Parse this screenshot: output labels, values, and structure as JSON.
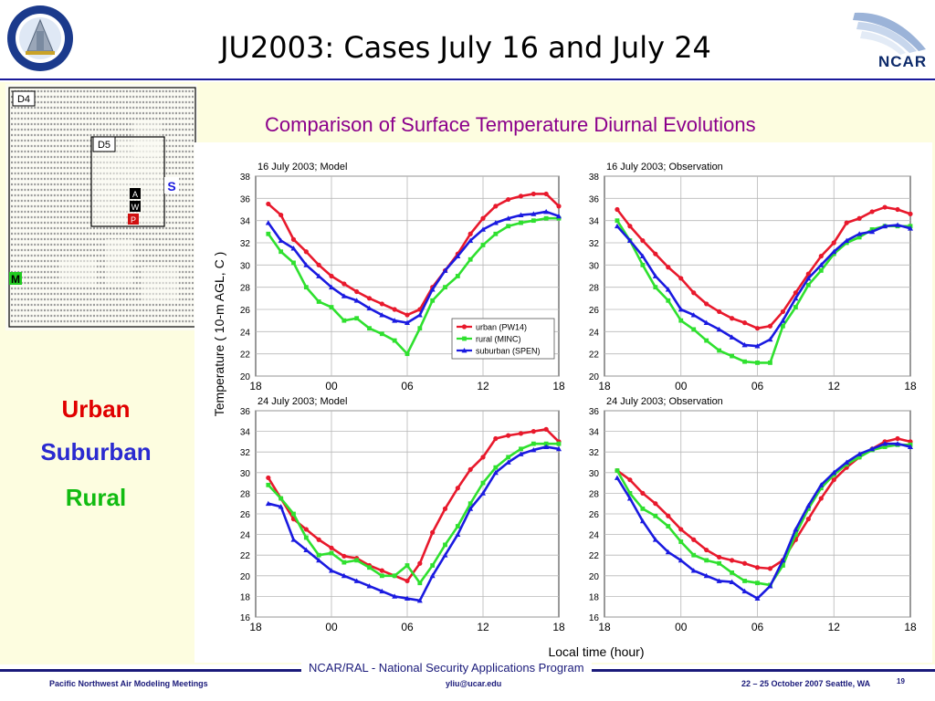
{
  "title": "JU2003: Cases July 16 and July 24",
  "subtitle": "Comparison of Surface Temperature Diurnal Evolutions",
  "map": {
    "domain_labels": [
      "D4",
      "D5"
    ],
    "site_labels": [
      "S",
      "M",
      "A",
      "W",
      "P"
    ]
  },
  "legend_words": {
    "urban": "Urban",
    "suburban": "Suburban",
    "rural": "Rural"
  },
  "colors": {
    "urban": "#e8192c",
    "rural": "#2fe02f",
    "suburban": "#1a1ae0",
    "urban_word": "#e00000",
    "suburban_word": "#2a2ad0",
    "rural_word": "#11bb11"
  },
  "figure": {
    "ylabel": "Temperature ( 10-m AGL, C )",
    "xlabel": "Local time (hour)"
  },
  "chart_data": [
    {
      "type": "line",
      "title": "16 July 2003;  Model",
      "xticks": [
        "18",
        "00",
        "06",
        "12",
        "18"
      ],
      "xlim": [
        0,
        24
      ],
      "ylim": [
        20,
        38
      ],
      "yticks": [
        20,
        22,
        24,
        26,
        28,
        30,
        32,
        34,
        36,
        38
      ],
      "grid": true,
      "legend": {
        "position": "bottom-right",
        "entries": [
          "urban (PW14)",
          "rural (MINC)",
          "suburban (SPEN)"
        ]
      },
      "x": [
        1,
        2,
        3,
        4,
        5,
        6,
        7,
        8,
        9,
        10,
        11,
        12,
        13,
        14,
        15,
        16,
        17,
        18,
        19,
        20,
        21,
        22,
        23,
        24
      ],
      "series": [
        {
          "name": "urban (PW14)",
          "key": "urban",
          "values": [
            35.5,
            34.5,
            32.3,
            31.2,
            30.0,
            29.0,
            28.3,
            27.6,
            27.0,
            26.5,
            26.0,
            25.5,
            26.0,
            28.0,
            29.5,
            31.0,
            32.8,
            34.2,
            35.3,
            35.9,
            36.2,
            36.4,
            36.4,
            35.3
          ]
        },
        {
          "name": "rural (MINC)",
          "key": "rural",
          "values": [
            32.8,
            31.2,
            30.2,
            28.0,
            26.7,
            26.2,
            25.0,
            25.2,
            24.3,
            23.8,
            23.2,
            22.0,
            24.3,
            26.8,
            28.0,
            29.0,
            30.5,
            31.8,
            32.8,
            33.5,
            33.8,
            34.0,
            34.2,
            34.2
          ]
        },
        {
          "name": "suburban (SPEN)",
          "key": "suburban",
          "values": [
            33.8,
            32.2,
            31.5,
            30.0,
            29.0,
            28.0,
            27.2,
            26.8,
            26.1,
            25.5,
            25.0,
            24.8,
            25.5,
            27.8,
            29.5,
            30.8,
            32.2,
            33.2,
            33.8,
            34.2,
            34.5,
            34.6,
            34.8,
            34.4
          ]
        }
      ]
    },
    {
      "type": "line",
      "title": "16 July 2003;  Observation",
      "xticks": [
        "18",
        "00",
        "06",
        "12",
        "18"
      ],
      "xlim": [
        0,
        24
      ],
      "ylim": [
        20,
        38
      ],
      "yticks": [
        20,
        22,
        24,
        26,
        28,
        30,
        32,
        34,
        36,
        38
      ],
      "grid": true,
      "x": [
        1,
        2,
        3,
        4,
        5,
        6,
        7,
        8,
        9,
        10,
        11,
        12,
        13,
        14,
        15,
        16,
        17,
        18,
        19,
        20,
        21,
        22,
        23,
        24
      ],
      "series": [
        {
          "name": "urban (PW14)",
          "key": "urban",
          "values": [
            35.0,
            33.5,
            32.2,
            31.0,
            29.8,
            28.8,
            27.5,
            26.5,
            25.8,
            25.2,
            24.8,
            24.3,
            24.5,
            25.8,
            27.5,
            29.2,
            30.8,
            32.0,
            33.8,
            34.2,
            34.8,
            35.2,
            35.0,
            34.6
          ]
        },
        {
          "name": "rural (MINC)",
          "key": "rural",
          "values": [
            34.0,
            32.2,
            30.0,
            28.0,
            26.8,
            25.0,
            24.2,
            23.2,
            22.3,
            21.8,
            21.3,
            21.2,
            21.2,
            24.5,
            26.2,
            28.2,
            29.5,
            31.0,
            32.0,
            32.5,
            33.2,
            33.5,
            33.5,
            33.5
          ]
        },
        {
          "name": "suburban (SPEN)",
          "key": "suburban",
          "values": [
            33.5,
            32.2,
            30.8,
            29.0,
            27.8,
            26.0,
            25.5,
            24.8,
            24.2,
            23.5,
            22.8,
            22.7,
            23.3,
            25.0,
            27.0,
            28.8,
            30.0,
            31.2,
            32.2,
            32.8,
            33.0,
            33.5,
            33.6,
            33.3
          ]
        }
      ]
    },
    {
      "type": "line",
      "title": "24 July 2003;  Model",
      "xticks": [
        "18",
        "00",
        "06",
        "12",
        "18"
      ],
      "xlim": [
        0,
        24
      ],
      "ylim": [
        16,
        36
      ],
      "yticks": [
        16,
        18,
        20,
        22,
        24,
        26,
        28,
        30,
        32,
        34,
        36
      ],
      "grid": true,
      "x": [
        1,
        2,
        3,
        4,
        5,
        6,
        7,
        8,
        9,
        10,
        11,
        12,
        13,
        14,
        15,
        16,
        17,
        18,
        19,
        20,
        21,
        22,
        23,
        24
      ],
      "series": [
        {
          "name": "urban (PW14)",
          "key": "urban",
          "values": [
            29.5,
            27.5,
            25.5,
            24.5,
            23.5,
            22.7,
            21.9,
            21.7,
            21.0,
            20.5,
            20.0,
            19.5,
            21.2,
            24.2,
            26.5,
            28.5,
            30.3,
            31.5,
            33.3,
            33.6,
            33.8,
            34.0,
            34.2,
            33.0
          ]
        },
        {
          "name": "rural (MINC)",
          "key": "rural",
          "values": [
            28.8,
            27.5,
            26.0,
            23.7,
            22.0,
            22.2,
            21.3,
            21.5,
            20.8,
            20.0,
            20.0,
            21.0,
            19.3,
            21.0,
            23.0,
            24.8,
            27.0,
            29.0,
            30.5,
            31.5,
            32.3,
            32.8,
            32.8,
            32.8
          ]
        },
        {
          "name": "suburban (SPEN)",
          "key": "suburban",
          "values": [
            27.0,
            26.7,
            23.5,
            22.5,
            21.5,
            20.5,
            20.0,
            19.5,
            19.0,
            18.5,
            18.0,
            17.8,
            17.6,
            20.0,
            22.0,
            24.0,
            26.5,
            28.0,
            30.0,
            31.0,
            31.8,
            32.2,
            32.5,
            32.3
          ]
        }
      ]
    },
    {
      "type": "line",
      "title": "24 July 2003;  Observation",
      "xticks": [
        "18",
        "00",
        "06",
        "12",
        "18"
      ],
      "xlim": [
        0,
        24
      ],
      "ylim": [
        16,
        36
      ],
      "yticks": [
        16,
        18,
        20,
        22,
        24,
        26,
        28,
        30,
        32,
        34,
        36
      ],
      "grid": true,
      "x": [
        1,
        2,
        3,
        4,
        5,
        6,
        7,
        8,
        9,
        10,
        11,
        12,
        13,
        14,
        15,
        16,
        17,
        18,
        19,
        20,
        21,
        22,
        23,
        24
      ],
      "series": [
        {
          "name": "urban (PW14)",
          "key": "urban",
          "values": [
            30.2,
            29.3,
            28.0,
            27.0,
            25.8,
            24.5,
            23.5,
            22.5,
            21.8,
            21.5,
            21.2,
            20.8,
            20.7,
            21.5,
            23.5,
            25.5,
            27.5,
            29.3,
            30.5,
            31.5,
            32.3,
            33.0,
            33.3,
            33.0
          ]
        },
        {
          "name": "rural (MINC)",
          "key": "rural",
          "values": [
            30.2,
            28.0,
            26.5,
            25.8,
            24.8,
            23.3,
            22.0,
            21.5,
            21.2,
            20.3,
            19.5,
            19.3,
            19.1,
            21.0,
            24.0,
            26.5,
            28.5,
            29.8,
            30.8,
            31.5,
            32.2,
            32.5,
            32.7,
            32.7
          ]
        },
        {
          "name": "suburban (SPEN)",
          "key": "suburban",
          "values": [
            29.5,
            27.5,
            25.3,
            23.5,
            22.3,
            21.5,
            20.5,
            20.0,
            19.5,
            19.4,
            18.5,
            17.8,
            19.0,
            21.5,
            24.5,
            26.8,
            28.8,
            30.0,
            31.0,
            31.8,
            32.3,
            32.8,
            32.8,
            32.5
          ]
        }
      ]
    }
  ],
  "footer": {
    "center": "NCAR/RAL - National Security Applications Program",
    "left": "Pacific Northwest Air Modeling Meetings",
    "middle": "yliu@ucar.edu",
    "right": "22 – 25 October 2007  Seattle, WA",
    "page": "19"
  }
}
